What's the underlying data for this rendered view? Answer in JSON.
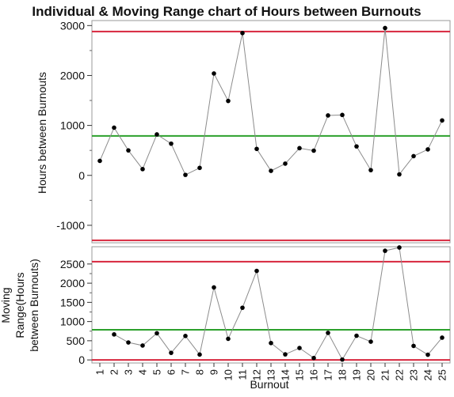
{
  "chart_data": [
    {
      "type": "line",
      "title": "Individual & Moving Range chart of Hours between Burnouts",
      "xlabel": "Burnout",
      "ylabel": "Hours between Burnouts",
      "ylim": [
        -1350,
        3100
      ],
      "yticks": [
        -1000,
        0,
        1000,
        2000,
        3000
      ],
      "grid": false,
      "x": [
        1,
        2,
        3,
        4,
        5,
        6,
        7,
        8,
        9,
        10,
        11,
        12,
        13,
        14,
        15,
        16,
        17,
        18,
        19,
        20,
        21,
        22,
        23,
        24,
        25
      ],
      "series": [
        {
          "values": [
            290,
            955,
            500,
            125,
            820,
            635,
            10,
            150,
            2040,
            1490,
            2850,
            530,
            90,
            235,
            545,
            495,
            1200,
            1210,
            580,
            105,
            2950,
            20,
            385,
            520,
            1100
          ]
        }
      ],
      "control_limits": {
        "center": 790,
        "ucl": 2880,
        "lcl": -1300
      },
      "colors": {
        "points": "#000000",
        "line": "#8c8c8c",
        "limits": "#d7263d",
        "center": "#2ca02c"
      }
    },
    {
      "type": "line",
      "xlabel": "Burnout",
      "ylabel": "Moving Range(Hours between Burnouts)",
      "ylim": [
        -80,
        2950
      ],
      "yticks": [
        0,
        500,
        1000,
        1500,
        2000,
        2500
      ],
      "grid": false,
      "x": [
        2,
        3,
        4,
        5,
        6,
        7,
        8,
        9,
        10,
        11,
        12,
        13,
        14,
        15,
        16,
        17,
        18,
        19,
        20,
        21,
        22,
        23,
        24,
        25
      ],
      "series": [
        {
          "values": [
            665,
            455,
            375,
            695,
            185,
            625,
            140,
            1890,
            550,
            1360,
            2320,
            440,
            145,
            310,
            50,
            705,
            10,
            630,
            475,
            2845,
            2930,
            365,
            135,
            580
          ]
        }
      ],
      "control_limits": {
        "center": 785,
        "ucl": 2560,
        "lcl": 0
      },
      "colors": {
        "points": "#000000",
        "line": "#8c8c8c",
        "limits": "#d7263d",
        "center": "#2ca02c"
      }
    }
  ]
}
